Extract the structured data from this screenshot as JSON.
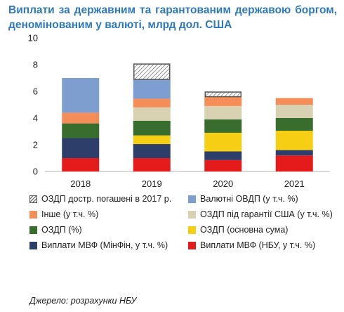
{
  "title": "Виплати за державним та гарантованим державою боргом, деномінованим у валюті, млрд дол. США",
  "source": "Джерело: розрахунки НБУ",
  "chart_data": {
    "type": "bar",
    "stacked": true,
    "categories": [
      "2018",
      "2019",
      "2020",
      "2021"
    ],
    "ylim": [
      0,
      10
    ],
    "yticks": [
      0,
      2,
      4,
      6,
      8,
      10
    ],
    "series": [
      {
        "name": "Виплати МВФ  (НБУ, у т.ч. %)",
        "color": "#e51a1a",
        "values": [
          1.0,
          1.0,
          0.85,
          1.2
        ]
      },
      {
        "name": "Виплати МВФ  (МінФін, у т.ч. %)",
        "color": "#2d3e6a",
        "values": [
          1.5,
          1.05,
          0.65,
          0.4
        ]
      },
      {
        "name": "ОЗДП  (основна сума)",
        "color": "#f6ce14",
        "values": [
          0.0,
          0.65,
          1.4,
          1.45
        ]
      },
      {
        "name": "ОЗДП (%)",
        "color": "#396d2e",
        "values": [
          1.1,
          1.1,
          1.0,
          0.95
        ]
      },
      {
        "name": "ОЗДП під гарантії США (у т.ч. %)",
        "color": "#d8d2b3",
        "values": [
          0.0,
          1.0,
          1.0,
          1.0
        ]
      },
      {
        "name": "Інше (у т.ч. %)",
        "color": "#f58d58",
        "values": [
          0.8,
          0.65,
          0.7,
          0.5
        ]
      },
      {
        "name": "Валютні ОВДП (у т.ч. %)",
        "color": "#7f9ed0",
        "values": [
          2.6,
          1.45,
          0.0,
          0.0
        ]
      },
      {
        "name": "ОЗДП дострокового погашені в 2017 р.",
        "legend_label": "ОЗДП достр. погашені в 2017 р.",
        "color": "#ffffff",
        "pattern": "hatch",
        "values": [
          0.0,
          1.2,
          0.4,
          0.0
        ]
      }
    ]
  }
}
